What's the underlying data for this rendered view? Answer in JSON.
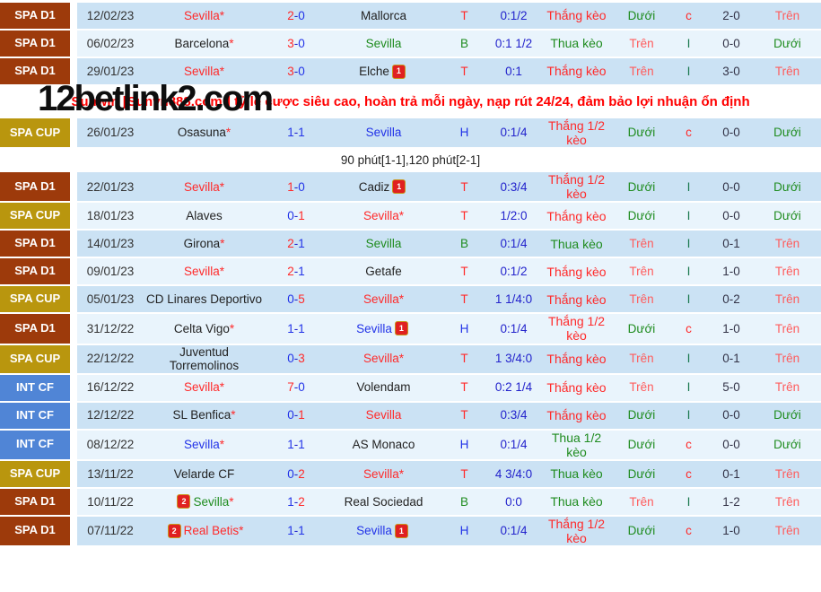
{
  "watermark": "12betlink2.com",
  "banner": {
    "after_row_index": 3,
    "text": "Sunwin [Sunvn888.com ] tỷ lệ cược siêu cao, hoàn trả mỗi ngày, nạp rút 24/24, đảm bảo lợi nhuận ổn định"
  },
  "league_colors": {
    "spa_d1": "#9d3a0b",
    "spa_cup": "#b9960e",
    "int_cf": "#5085d6"
  },
  "row_colors": {
    "dark": "#cbe2f4",
    "light": "#e9f4fc"
  },
  "rows": [
    {
      "league": "SPA D1",
      "lkey": "spa_d1",
      "shade": "dark",
      "date": "12/02/23",
      "home": {
        "name": "Sevilla",
        "color": "red",
        "star": true
      },
      "score": {
        "h": "2",
        "a": "0",
        "hc": "red",
        "ac": "blue"
      },
      "away": {
        "name": "Mallorca",
        "color": "black"
      },
      "letter": {
        "t": "T",
        "c": "red"
      },
      "odds": "0:1/2",
      "result": {
        "t": "Thắng kèo",
        "c": "red"
      },
      "ou1": {
        "t": "Dưới",
        "c": "green"
      },
      "ci": {
        "t": "c",
        "c": "red"
      },
      "ht": "2-0",
      "ou2": {
        "t": "Trên",
        "c": "salmon"
      }
    },
    {
      "league": "SPA D1",
      "lkey": "spa_d1",
      "shade": "light",
      "date": "06/02/23",
      "home": {
        "name": "Barcelona",
        "color": "black",
        "star": true
      },
      "score": {
        "h": "3",
        "a": "0",
        "hc": "red",
        "ac": "blue"
      },
      "away": {
        "name": "Sevilla",
        "color": "green"
      },
      "letter": {
        "t": "B",
        "c": "green"
      },
      "odds": "0:1 1/2",
      "result": {
        "t": "Thua kèo",
        "c": "green"
      },
      "ou1": {
        "t": "Trên",
        "c": "salmon"
      },
      "ci": {
        "t": "I",
        "c": "teal"
      },
      "ht": "0-0",
      "ou2": {
        "t": "Dưới",
        "c": "green"
      }
    },
    {
      "league": "SPA D1",
      "lkey": "spa_d1",
      "shade": "dark",
      "date": "29/01/23",
      "home": {
        "name": "Sevilla",
        "color": "red",
        "star": true
      },
      "score": {
        "h": "3",
        "a": "0",
        "hc": "red",
        "ac": "blue"
      },
      "away": {
        "name": "Elche",
        "color": "black",
        "card": "1"
      },
      "letter": {
        "t": "T",
        "c": "red"
      },
      "odds": "0:1",
      "result": {
        "t": "Thắng kèo",
        "c": "red"
      },
      "ou1": {
        "t": "Trên",
        "c": "salmon"
      },
      "ci": {
        "t": "I",
        "c": "teal"
      },
      "ht": "3-0",
      "ou2": {
        "t": "Trên",
        "c": "salmon"
      }
    },
    {
      "league": "SPA CUP",
      "lkey": "spa_cup",
      "shade": "dark",
      "date": "26/01/23",
      "home": {
        "name": "Osasuna",
        "color": "black",
        "star": true
      },
      "score": {
        "h": "1",
        "a": "1",
        "hc": "blue",
        "ac": "blue"
      },
      "away": {
        "name": "Sevilla",
        "color": "blue"
      },
      "letter": {
        "t": "H",
        "c": "blue"
      },
      "odds": "0:1/4",
      "result": {
        "t": "Thắng 1/2 kèo",
        "c": "red"
      },
      "ou1": {
        "t": "Dưới",
        "c": "green"
      },
      "ci": {
        "t": "c",
        "c": "red"
      },
      "ht": "0-0",
      "ou2": {
        "t": "Dưới",
        "c": "green"
      },
      "note": "90 phút[1-1],120 phút[2-1]"
    },
    {
      "league": "SPA D1",
      "lkey": "spa_d1",
      "shade": "dark",
      "date": "22/01/23",
      "home": {
        "name": "Sevilla",
        "color": "red",
        "star": true
      },
      "score": {
        "h": "1",
        "a": "0",
        "hc": "red",
        "ac": "blue"
      },
      "away": {
        "name": "Cadiz",
        "color": "black",
        "card": "1"
      },
      "letter": {
        "t": "T",
        "c": "red"
      },
      "odds": "0:3/4",
      "result": {
        "t": "Thắng 1/2 kèo",
        "c": "red"
      },
      "ou1": {
        "t": "Dưới",
        "c": "green"
      },
      "ci": {
        "t": "I",
        "c": "teal"
      },
      "ht": "0-0",
      "ou2": {
        "t": "Dưới",
        "c": "green"
      }
    },
    {
      "league": "SPA CUP",
      "lkey": "spa_cup",
      "shade": "light",
      "date": "18/01/23",
      "home": {
        "name": "Alaves",
        "color": "black"
      },
      "score": {
        "h": "0",
        "a": "1",
        "hc": "blue",
        "ac": "red"
      },
      "away": {
        "name": "Sevilla",
        "color": "red",
        "star": true
      },
      "letter": {
        "t": "T",
        "c": "red"
      },
      "odds": "1/2:0",
      "result": {
        "t": "Thắng kèo",
        "c": "red"
      },
      "ou1": {
        "t": "Dưới",
        "c": "green"
      },
      "ci": {
        "t": "I",
        "c": "teal"
      },
      "ht": "0-0",
      "ou2": {
        "t": "Dưới",
        "c": "green"
      }
    },
    {
      "league": "SPA D1",
      "lkey": "spa_d1",
      "shade": "dark",
      "date": "14/01/23",
      "home": {
        "name": "Girona",
        "color": "black",
        "star": true
      },
      "score": {
        "h": "2",
        "a": "1",
        "hc": "red",
        "ac": "blue"
      },
      "away": {
        "name": "Sevilla",
        "color": "green"
      },
      "letter": {
        "t": "B",
        "c": "green"
      },
      "odds": "0:1/4",
      "result": {
        "t": "Thua kèo",
        "c": "green"
      },
      "ou1": {
        "t": "Trên",
        "c": "salmon"
      },
      "ci": {
        "t": "I",
        "c": "teal"
      },
      "ht": "0-1",
      "ou2": {
        "t": "Trên",
        "c": "salmon"
      }
    },
    {
      "league": "SPA D1",
      "lkey": "spa_d1",
      "shade": "light",
      "date": "09/01/23",
      "home": {
        "name": "Sevilla",
        "color": "red",
        "star": true
      },
      "score": {
        "h": "2",
        "a": "1",
        "hc": "red",
        "ac": "blue"
      },
      "away": {
        "name": "Getafe",
        "color": "black"
      },
      "letter": {
        "t": "T",
        "c": "red"
      },
      "odds": "0:1/2",
      "result": {
        "t": "Thắng kèo",
        "c": "red"
      },
      "ou1": {
        "t": "Trên",
        "c": "salmon"
      },
      "ci": {
        "t": "I",
        "c": "teal"
      },
      "ht": "1-0",
      "ou2": {
        "t": "Trên",
        "c": "salmon"
      }
    },
    {
      "league": "SPA CUP",
      "lkey": "spa_cup",
      "shade": "dark",
      "date": "05/01/23",
      "home": {
        "name": "CD Linares Deportivo",
        "color": "black"
      },
      "score": {
        "h": "0",
        "a": "5",
        "hc": "blue",
        "ac": "red"
      },
      "away": {
        "name": "Sevilla",
        "color": "red",
        "star": true
      },
      "letter": {
        "t": "T",
        "c": "red"
      },
      "odds": "1 1/4:0",
      "result": {
        "t": "Thắng kèo",
        "c": "red"
      },
      "ou1": {
        "t": "Trên",
        "c": "salmon"
      },
      "ci": {
        "t": "I",
        "c": "teal"
      },
      "ht": "0-2",
      "ou2": {
        "t": "Trên",
        "c": "salmon"
      }
    },
    {
      "league": "SPA D1",
      "lkey": "spa_d1",
      "shade": "light",
      "date": "31/12/22",
      "home": {
        "name": "Celta Vigo",
        "color": "black",
        "star": true
      },
      "score": {
        "h": "1",
        "a": "1",
        "hc": "blue",
        "ac": "blue"
      },
      "away": {
        "name": "Sevilla",
        "color": "blue",
        "card": "1"
      },
      "letter": {
        "t": "H",
        "c": "blue"
      },
      "odds": "0:1/4",
      "result": {
        "t": "Thắng 1/2 kèo",
        "c": "red"
      },
      "ou1": {
        "t": "Dưới",
        "c": "green"
      },
      "ci": {
        "t": "c",
        "c": "red"
      },
      "ht": "1-0",
      "ou2": {
        "t": "Trên",
        "c": "salmon"
      }
    },
    {
      "league": "SPA CUP",
      "lkey": "spa_cup",
      "shade": "dark",
      "date": "22/12/22",
      "home": {
        "name": "Juventud Torremolinos",
        "color": "black"
      },
      "score": {
        "h": "0",
        "a": "3",
        "hc": "blue",
        "ac": "red"
      },
      "away": {
        "name": "Sevilla",
        "color": "red",
        "star": true
      },
      "letter": {
        "t": "T",
        "c": "red"
      },
      "odds": "1 3/4:0",
      "result": {
        "t": "Thắng kèo",
        "c": "red"
      },
      "ou1": {
        "t": "Trên",
        "c": "salmon"
      },
      "ci": {
        "t": "I",
        "c": "teal"
      },
      "ht": "0-1",
      "ou2": {
        "t": "Trên",
        "c": "salmon"
      }
    },
    {
      "league": "INT CF",
      "lkey": "int_cf",
      "shade": "light",
      "date": "16/12/22",
      "home": {
        "name": "Sevilla",
        "color": "red",
        "star": true
      },
      "score": {
        "h": "7",
        "a": "0",
        "hc": "red",
        "ac": "blue"
      },
      "away": {
        "name": "Volendam",
        "color": "black"
      },
      "letter": {
        "t": "T",
        "c": "red"
      },
      "odds": "0:2 1/4",
      "result": {
        "t": "Thắng kèo",
        "c": "red"
      },
      "ou1": {
        "t": "Trên",
        "c": "salmon"
      },
      "ci": {
        "t": "I",
        "c": "teal"
      },
      "ht": "5-0",
      "ou2": {
        "t": "Trên",
        "c": "salmon"
      }
    },
    {
      "league": "INT CF",
      "lkey": "int_cf",
      "shade": "dark",
      "date": "12/12/22",
      "home": {
        "name": "SL Benfica",
        "color": "black",
        "star": true
      },
      "score": {
        "h": "0",
        "a": "1",
        "hc": "blue",
        "ac": "red"
      },
      "away": {
        "name": "Sevilla",
        "color": "red"
      },
      "letter": {
        "t": "T",
        "c": "red"
      },
      "odds": "0:3/4",
      "result": {
        "t": "Thắng kèo",
        "c": "red"
      },
      "ou1": {
        "t": "Dưới",
        "c": "green"
      },
      "ci": {
        "t": "I",
        "c": "teal"
      },
      "ht": "0-0",
      "ou2": {
        "t": "Dưới",
        "c": "green"
      }
    },
    {
      "league": "INT CF",
      "lkey": "int_cf",
      "shade": "light",
      "date": "08/12/22",
      "home": {
        "name": "Sevilla",
        "color": "blue",
        "star": true
      },
      "score": {
        "h": "1",
        "a": "1",
        "hc": "blue",
        "ac": "blue"
      },
      "away": {
        "name": "AS Monaco",
        "color": "black"
      },
      "letter": {
        "t": "H",
        "c": "blue"
      },
      "odds": "0:1/4",
      "result": {
        "t": "Thua 1/2 kèo",
        "c": "green"
      },
      "ou1": {
        "t": "Dưới",
        "c": "green"
      },
      "ci": {
        "t": "c",
        "c": "red"
      },
      "ht": "0-0",
      "ou2": {
        "t": "Dưới",
        "c": "green"
      }
    },
    {
      "league": "SPA CUP",
      "lkey": "spa_cup",
      "shade": "dark",
      "date": "13/11/22",
      "home": {
        "name": "Velarde CF",
        "color": "black"
      },
      "score": {
        "h": "0",
        "a": "2",
        "hc": "blue",
        "ac": "red"
      },
      "away": {
        "name": "Sevilla",
        "color": "red",
        "star": true
      },
      "letter": {
        "t": "T",
        "c": "red"
      },
      "odds": "4 3/4:0",
      "result": {
        "t": "Thua kèo",
        "c": "green"
      },
      "ou1": {
        "t": "Dưới",
        "c": "green"
      },
      "ci": {
        "t": "c",
        "c": "red"
      },
      "ht": "0-1",
      "ou2": {
        "t": "Trên",
        "c": "salmon"
      }
    },
    {
      "league": "SPA D1",
      "lkey": "spa_d1",
      "shade": "light",
      "date": "10/11/22",
      "home": {
        "name": "Sevilla",
        "color": "green",
        "star": true,
        "card_before": "2"
      },
      "score": {
        "h": "1",
        "a": "2",
        "hc": "blue",
        "ac": "red"
      },
      "away": {
        "name": "Real Sociedad",
        "color": "black"
      },
      "letter": {
        "t": "B",
        "c": "green"
      },
      "odds": "0:0",
      "result": {
        "t": "Thua kèo",
        "c": "green"
      },
      "ou1": {
        "t": "Trên",
        "c": "salmon"
      },
      "ci": {
        "t": "I",
        "c": "teal"
      },
      "ht": "1-2",
      "ou2": {
        "t": "Trên",
        "c": "salmon"
      }
    },
    {
      "league": "SPA D1",
      "lkey": "spa_d1",
      "shade": "dark",
      "date": "07/11/22",
      "home": {
        "name": "Real Betis",
        "color": "red",
        "star": true,
        "card_before": "2"
      },
      "score": {
        "h": "1",
        "a": "1",
        "hc": "blue",
        "ac": "blue"
      },
      "away": {
        "name": "Sevilla",
        "color": "blue",
        "card": "1"
      },
      "letter": {
        "t": "H",
        "c": "blue"
      },
      "odds": "0:1/4",
      "result": {
        "t": "Thắng 1/2 kèo",
        "c": "red"
      },
      "ou1": {
        "t": "Dưới",
        "c": "green"
      },
      "ci": {
        "t": "c",
        "c": "red"
      },
      "ht": "1-0",
      "ou2": {
        "t": "Trên",
        "c": "salmon"
      }
    }
  ]
}
